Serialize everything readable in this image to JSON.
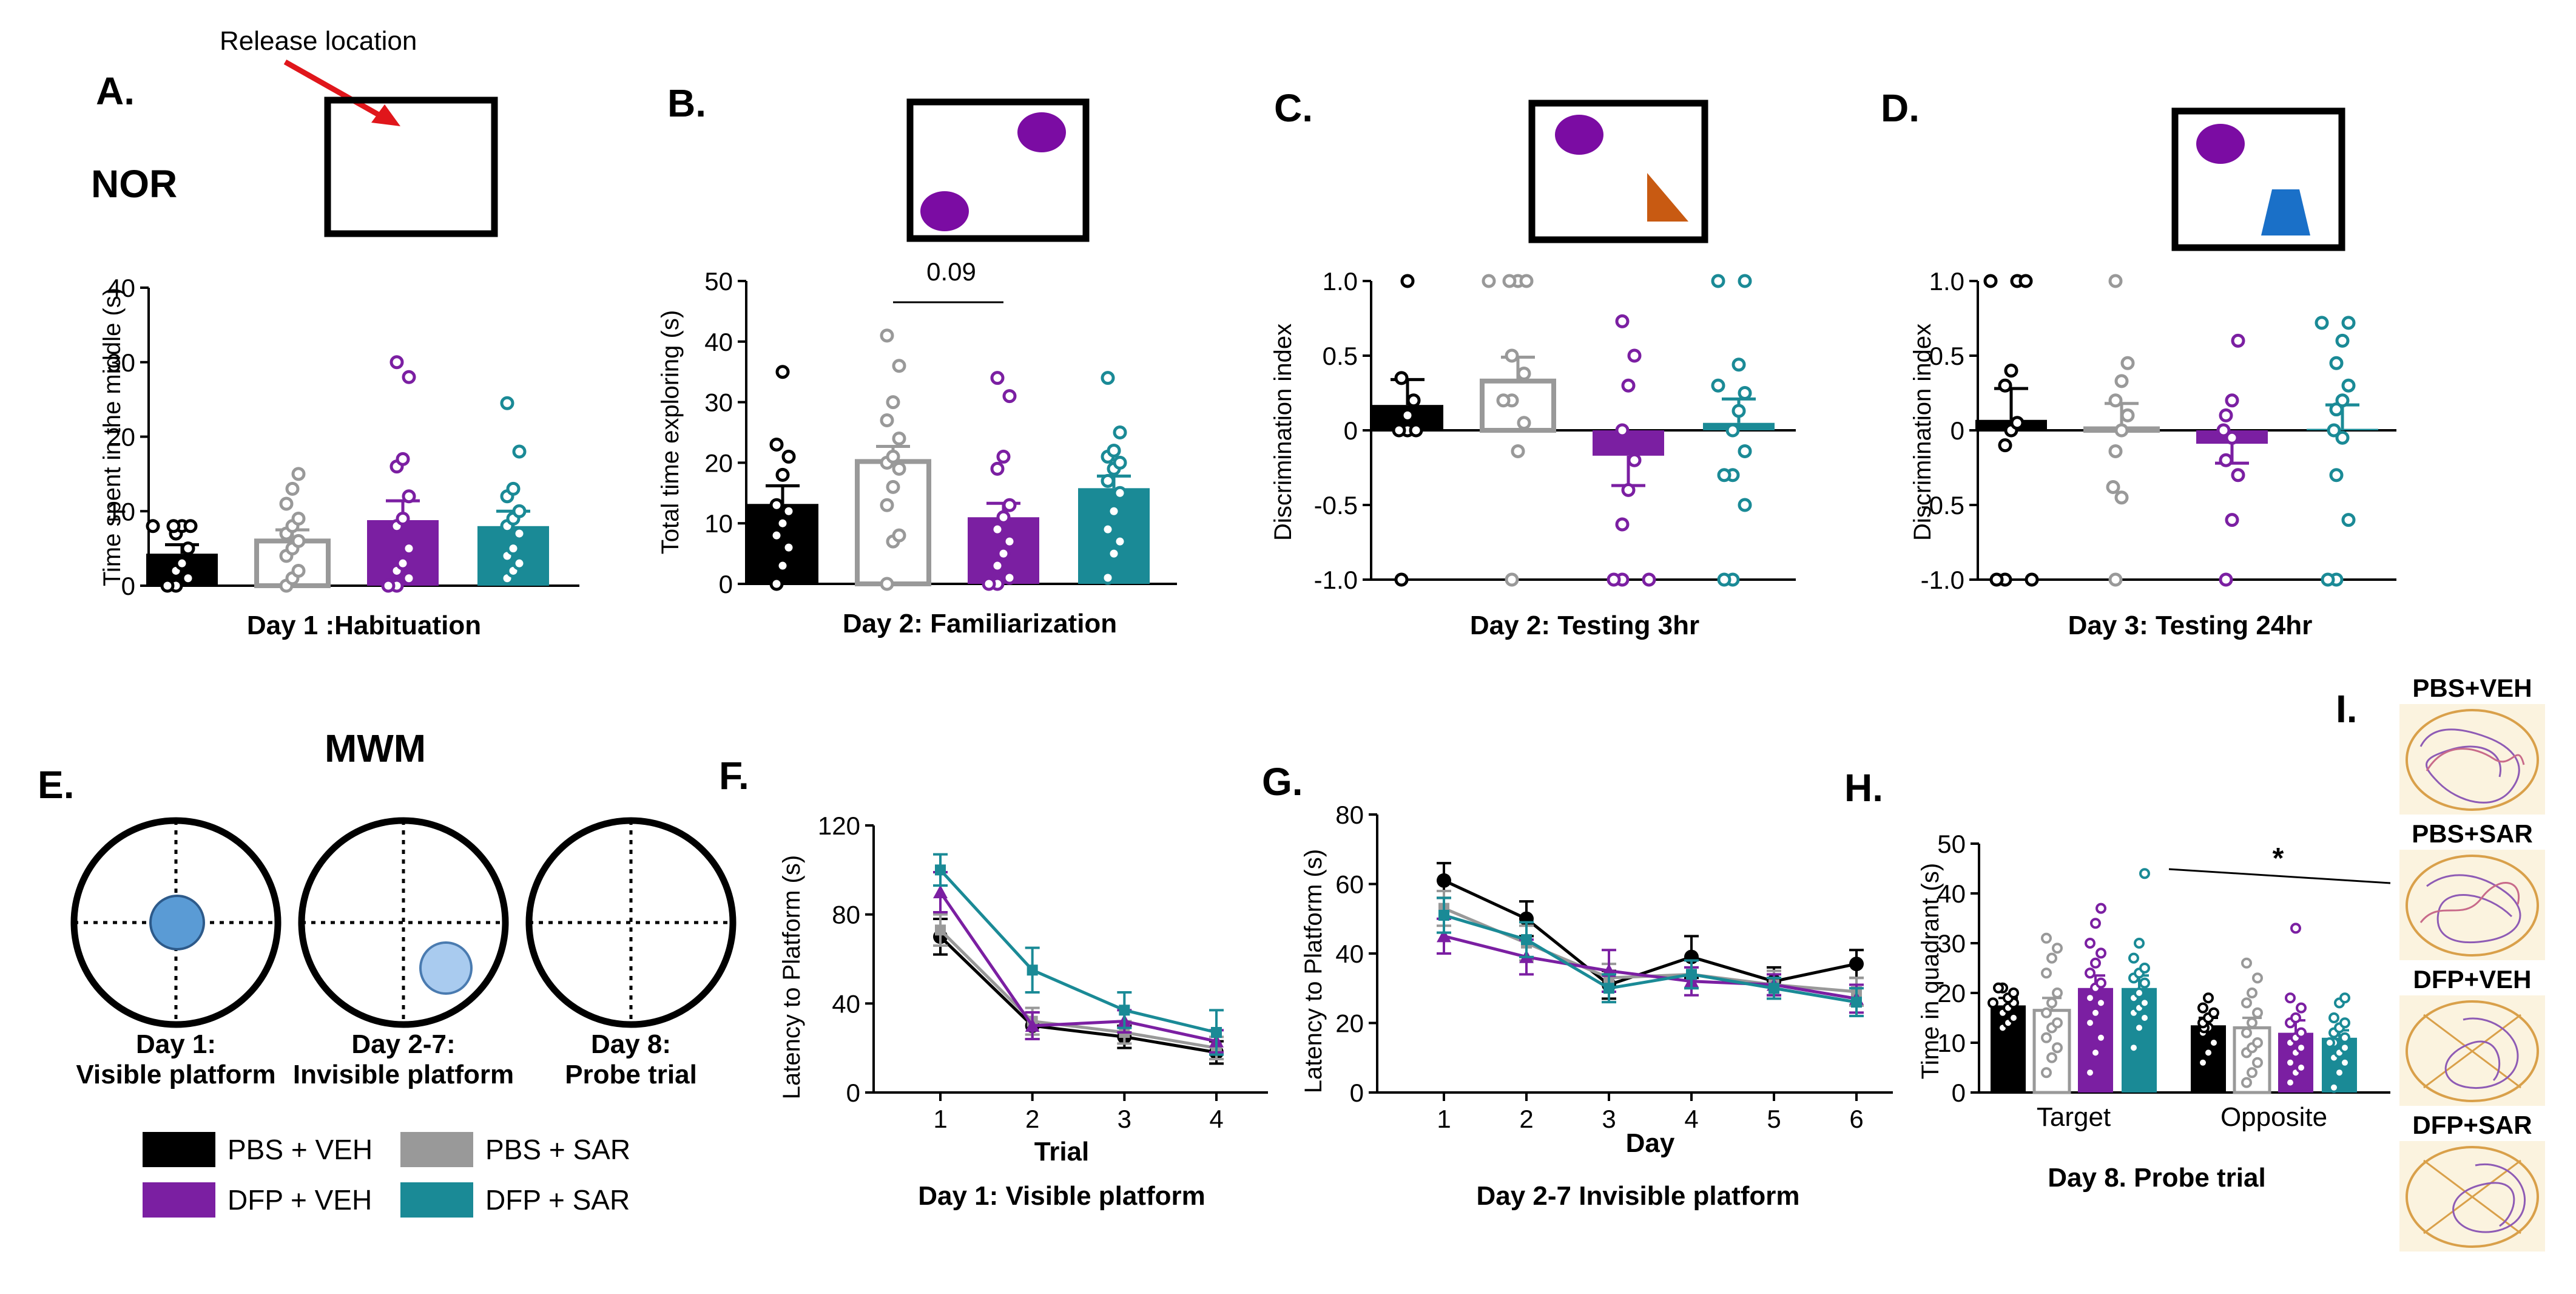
{
  "colors": {
    "pbs_veh": "#000000",
    "pbs_sar": "#999999",
    "dfp_veh": "#7B1FA2",
    "dfp_sar": "#1A8A96",
    "arrow": "#E0161B",
    "object_purple": "#7B0CA3",
    "object_orange": "#C85A12",
    "object_blue": "#1A70C8",
    "platform": "#5A9BD5",
    "trace_bg": "#FBF3DF"
  },
  "sections": {
    "nor": "NOR",
    "mwm": "MWM",
    "release_location": "Release location"
  },
  "panel_letters": {
    "A": "A.",
    "B": "B.",
    "C": "C.",
    "D": "D.",
    "E": "E.",
    "F": "F.",
    "G": "G.",
    "H": "H.",
    "I": "I."
  },
  "legend": [
    "PBS + VEH",
    "PBS + SAR",
    "DFP + VEH",
    "DFP + SAR"
  ],
  "mwm_schematic": [
    {
      "day": "Day 1:",
      "label": "Visible platform"
    },
    {
      "day": "Day 2-7:",
      "label": "Invisible platform"
    },
    {
      "day": "Day 8:",
      "label": "Probe trial"
    }
  ],
  "trace_labels": [
    "PBS+VEH",
    "PBS+SAR",
    "DFP+VEH",
    "DFP+SAR"
  ],
  "chart_data": [
    {
      "id": "A",
      "type": "bar",
      "title": "Day 1 :Habituation",
      "ylabel": "Time spent in the middle (s)",
      "ylim": [
        0,
        40
      ],
      "yticks": [
        "0",
        "10",
        "20",
        "30",
        "40"
      ],
      "categories": [
        "PBS + VEH",
        "PBS + SAR",
        "DFP + VEH",
        "DFP + SAR"
      ],
      "values": [
        4.3,
        6,
        8.8,
        8
      ],
      "sem": [
        1.2,
        1.5,
        2.6,
        2
      ],
      "points": [
        [
          0,
          0,
          1,
          2,
          3,
          5,
          7,
          8,
          8,
          8,
          8
        ],
        [
          0,
          1,
          2,
          4,
          5,
          6,
          7,
          8,
          9,
          11,
          13,
          15
        ],
        [
          0,
          0,
          1,
          2,
          3,
          5,
          8,
          9,
          12,
          16,
          17,
          28,
          30
        ],
        [
          1,
          2,
          3,
          4,
          5,
          7,
          8,
          9,
          10,
          12,
          13,
          18,
          24.5
        ]
      ]
    },
    {
      "id": "B",
      "type": "bar",
      "title": "Day 2: Familiarization",
      "ylabel": "Total time exploring (s)",
      "ylim": [
        0,
        50
      ],
      "yticks": [
        "0",
        "10",
        "20",
        "30",
        "40",
        "50"
      ],
      "categories": [
        "PBS + VEH",
        "PBS + SAR",
        "DFP + VEH",
        "DFP + SAR"
      ],
      "values": [
        13.2,
        20.2,
        11,
        15.8
      ],
      "sem": [
        3,
        2.5,
        2.3,
        2
      ],
      "points": [
        [
          0,
          3,
          6,
          8,
          10,
          12,
          13,
          18,
          21,
          23,
          35
        ],
        [
          0,
          7,
          8,
          13,
          16,
          19,
          20,
          21,
          24,
          27,
          30,
          36,
          41
        ],
        [
          0,
          0,
          1,
          3,
          5,
          7,
          9,
          11,
          13,
          19,
          21,
          31,
          34
        ],
        [
          1,
          5,
          7,
          9,
          12,
          15,
          17,
          19,
          20,
          21,
          22,
          25,
          34
        ]
      ],
      "annotation": {
        "text": "0.09",
        "from": 1,
        "to": 2
      }
    },
    {
      "id": "C",
      "type": "bar",
      "title": "Day 2: Testing 3hr",
      "ylabel": "Discrimination index",
      "ylim": [
        -1,
        1
      ],
      "yticks": [
        "-1.0",
        "-0.5",
        "0",
        "0.5",
        "1.0"
      ],
      "categories": [
        "PBS + VEH",
        "PBS + SAR",
        "DFP + VEH",
        "DFP + SAR"
      ],
      "values": [
        0.17,
        0.33,
        -0.17,
        0.05
      ],
      "sem": [
        0.17,
        0.16,
        0.2,
        0.16
      ],
      "points": [
        [
          -1,
          0,
          0,
          0,
          0.1,
          0.2,
          0.35,
          1
        ],
        [
          -1,
          -0.14,
          0.05,
          0.2,
          0.2,
          0.38,
          0.5,
          1,
          1,
          1,
          1
        ],
        [
          -1,
          -1,
          -1,
          -0.63,
          -0.4,
          -0.2,
          0,
          0.3,
          0.5,
          0.73
        ],
        [
          -1,
          -1,
          -0.5,
          -0.3,
          -0.3,
          -0.14,
          0,
          0.13,
          0.25,
          0.3,
          0.44,
          1,
          1
        ]
      ]
    },
    {
      "id": "D",
      "type": "bar",
      "title": "Day 3: Testing 24hr",
      "ylabel": "Discrimination index",
      "ylim": [
        -1,
        1
      ],
      "yticks": [
        "-1.0",
        "-0.5",
        "0",
        "0.5",
        "1.0"
      ],
      "categories": [
        "PBS + VEH",
        "PBS + SAR",
        "DFP + VEH",
        "DFP + SAR"
      ],
      "values": [
        0.07,
        0.01,
        -0.09,
        0.01
      ],
      "sem": [
        0.21,
        0.17,
        0.13,
        0.16
      ],
      "points": [
        [
          -1,
          -1,
          -1,
          -0.1,
          0,
          0.05,
          0.3,
          0.4,
          1,
          1,
          1
        ],
        [
          -1,
          -0.45,
          -0.38,
          -0.14,
          0,
          0.1,
          0.2,
          0.33,
          0.45,
          1
        ],
        [
          -1,
          -0.6,
          -0.3,
          -0.2,
          -0.05,
          0,
          0.1,
          0.2,
          0.6
        ],
        [
          -1,
          -1,
          -0.6,
          -0.3,
          -0.05,
          0,
          0.14,
          0.2,
          0.3,
          0.45,
          0.6,
          0.72,
          0.72
        ]
      ]
    },
    {
      "id": "F",
      "type": "line",
      "title": "Day 1: Visible platform",
      "xlabel": "Trial",
      "ylabel": "Latency  to Platform (s)",
      "x": [
        1,
        2,
        3,
        4
      ],
      "ylim": [
        0,
        120
      ],
      "yticks": [
        "0",
        "40",
        "80",
        "120"
      ],
      "series": [
        {
          "name": "PBS + VEH",
          "values": [
            70,
            30,
            25,
            18
          ],
          "sem": [
            8,
            6,
            5,
            5
          ]
        },
        {
          "name": "PBS + SAR",
          "values": [
            73,
            32,
            27,
            20
          ],
          "sem": [
            7,
            6,
            5,
            5
          ]
        },
        {
          "name": "DFP + VEH",
          "values": [
            90,
            30,
            32,
            23
          ],
          "sem": [
            9,
            6,
            5,
            5
          ]
        },
        {
          "name": "DFP + SAR",
          "values": [
            100,
            55,
            37,
            27
          ],
          "sem": [
            7,
            10,
            8,
            10
          ]
        }
      ]
    },
    {
      "id": "G",
      "type": "line",
      "title": "Day 2-7 Invisible platform",
      "xlabel": "Day",
      "ylabel": "Latency  to Platform (s)",
      "x": [
        1,
        2,
        3,
        4,
        5,
        6
      ],
      "ylim": [
        0,
        80
      ],
      "yticks": [
        "0",
        "20",
        "40",
        "60",
        "80"
      ],
      "series": [
        {
          "name": "PBS + VEH",
          "values": [
            61,
            50,
            31,
            39,
            32,
            37
          ],
          "sem": [
            5,
            5,
            4,
            6,
            4,
            4
          ]
        },
        {
          "name": "PBS + SAR",
          "values": [
            53,
            43,
            33,
            34,
            31,
            29
          ],
          "sem": [
            5,
            5,
            4,
            4,
            4,
            4
          ]
        },
        {
          "name": "DFP + VEH",
          "values": [
            45,
            39,
            35,
            32,
            31,
            27
          ],
          "sem": [
            5,
            5,
            6,
            4,
            3,
            4
          ]
        },
        {
          "name": "DFP + SAR",
          "values": [
            51,
            44,
            30,
            34,
            30,
            26
          ],
          "sem": [
            5,
            5,
            4,
            4,
            3,
            4
          ]
        }
      ]
    },
    {
      "id": "H",
      "type": "bar",
      "title": "Day 8. Probe trial",
      "ylabel": "Time in quadrant (s)",
      "ylim": [
        0,
        50
      ],
      "yticks": [
        "0",
        "10",
        "20",
        "30",
        "40",
        "50"
      ],
      "categories": [
        "Target",
        "Opposite"
      ],
      "series_names": [
        "PBS + VEH",
        "PBS + SAR",
        "DFP + VEH",
        "DFP + SAR"
      ],
      "values": [
        [
          17.5,
          16.5,
          21,
          21
        ],
        [
          13.5,
          13,
          12,
          11
        ]
      ],
      "sem": [
        [
          1.5,
          2.5,
          2.5,
          2.5
        ],
        [
          1.5,
          2,
          2.5,
          1.5
        ]
      ],
      "points": [
        [
          [
            13,
            14,
            15,
            16,
            17,
            18,
            18,
            19,
            20,
            21,
            21
          ],
          [
            4,
            7,
            9,
            11,
            13,
            14,
            16,
            18,
            20,
            24,
            27,
            29,
            31
          ],
          [
            4,
            8,
            11,
            14,
            16,
            18,
            19,
            21,
            22,
            24,
            26,
            28,
            30,
            34,
            37
          ],
          [
            9,
            13,
            15,
            16,
            17,
            18,
            19,
            20,
            22,
            23,
            24,
            25,
            27,
            30,
            44
          ]
        ],
        [
          [
            6,
            8,
            10,
            12,
            13,
            13,
            14,
            15,
            16,
            17,
            19
          ],
          [
            2,
            4,
            6,
            8,
            9,
            10,
            12,
            14,
            16,
            18,
            20,
            23,
            26
          ],
          [
            2,
            4,
            5,
            6,
            8,
            9,
            10,
            11,
            12,
            14,
            15,
            17,
            19,
            33
          ],
          [
            1,
            4,
            6,
            7,
            8,
            9,
            10,
            10,
            11,
            12,
            13,
            14,
            15,
            18,
            19
          ]
        ]
      ],
      "annotation": {
        "text": "*"
      }
    }
  ]
}
